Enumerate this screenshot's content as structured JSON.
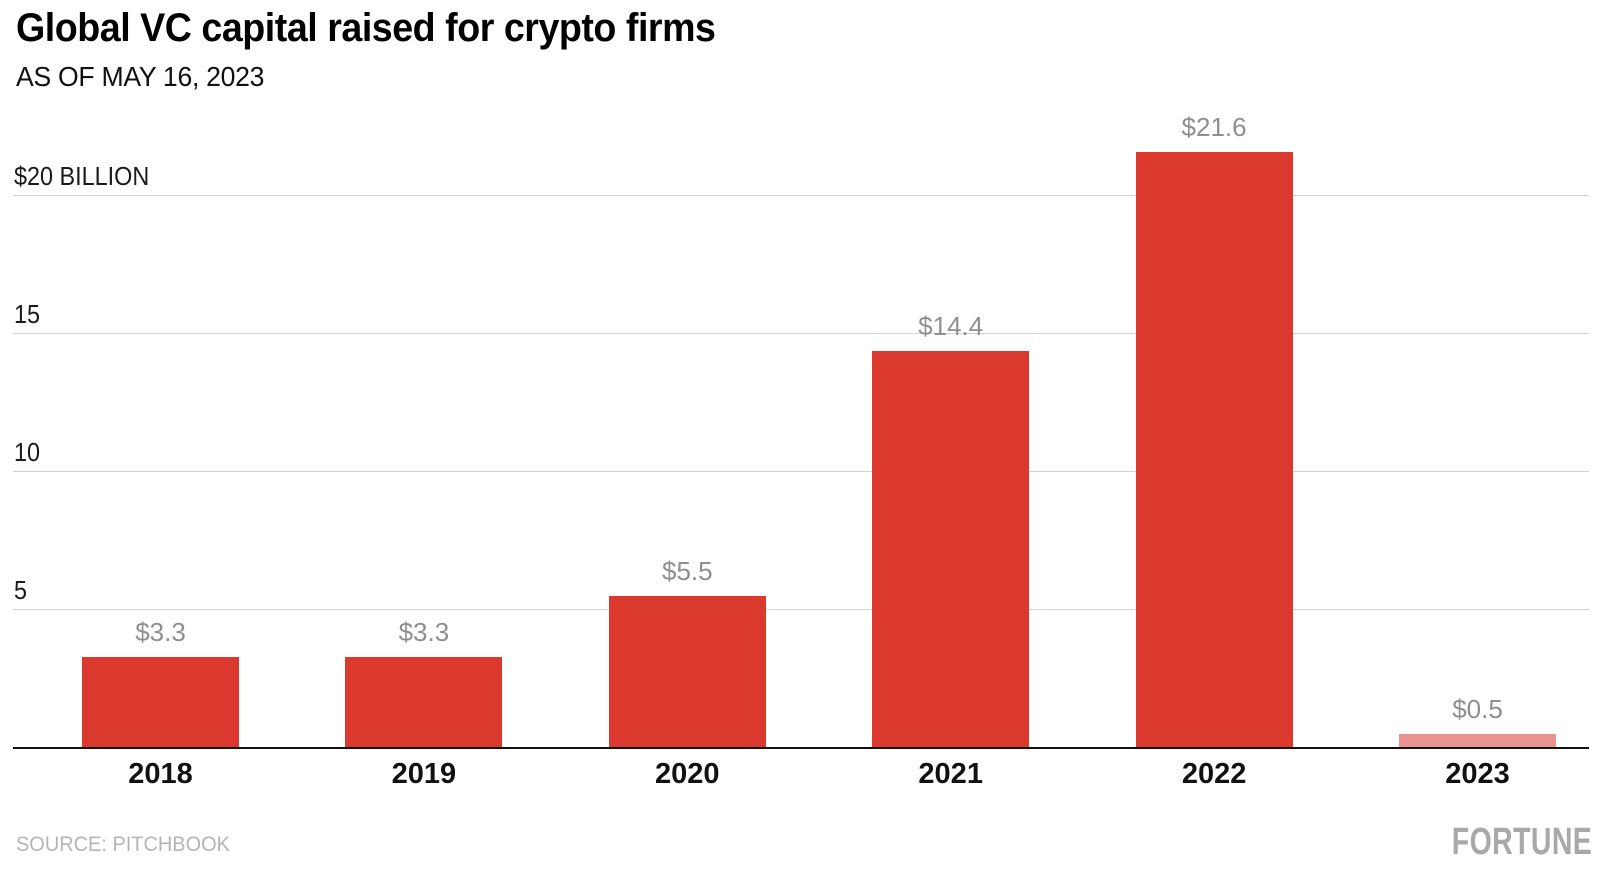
{
  "header": {
    "title": "Global VC capital raised for crypto firms",
    "subtitle": "AS OF MAY 16, 2023"
  },
  "footer": {
    "source": "SOURCE: PITCHBOOK",
    "brand": "FORTUNE"
  },
  "chart_data": {
    "type": "bar",
    "title": "Global VC capital raised for crypto firms",
    "subtitle": "AS OF MAY 16, 2023",
    "unit": "billions of US dollars",
    "categories": [
      "2018",
      "2019",
      "2020",
      "2021",
      "2022",
      "2023"
    ],
    "values": [
      3.3,
      3.3,
      5.5,
      14.4,
      21.6,
      0.5
    ],
    "value_labels": [
      "$3.3",
      "$3.3",
      "$5.5",
      "$14.4",
      "$21.6",
      "$0.5"
    ],
    "bar_colors": [
      "#db382e",
      "#db382e",
      "#db382e",
      "#db382e",
      "#db382e",
      "#ea9492"
    ],
    "xlabel": "",
    "ylabel": "",
    "ylim": [
      0,
      21.67
    ],
    "yticks": [
      {
        "value": 5,
        "label": "5"
      },
      {
        "value": 10,
        "label": "10"
      },
      {
        "value": 15,
        "label": "15"
      },
      {
        "value": 20,
        "label": "$20 BILLION"
      }
    ],
    "grid": "horizontal",
    "legend": "none",
    "colors": {
      "bar_default": "#db382e",
      "bar_muted": "#ea9492",
      "gridline": "#d2d2d2",
      "axis_line": "#111111",
      "value_label": "#8f8f8f",
      "tick_label": "#1a1a1a",
      "title": "#000000",
      "source_text": "#b5b5b5",
      "brand_text": "#a9a9a9"
    }
  }
}
